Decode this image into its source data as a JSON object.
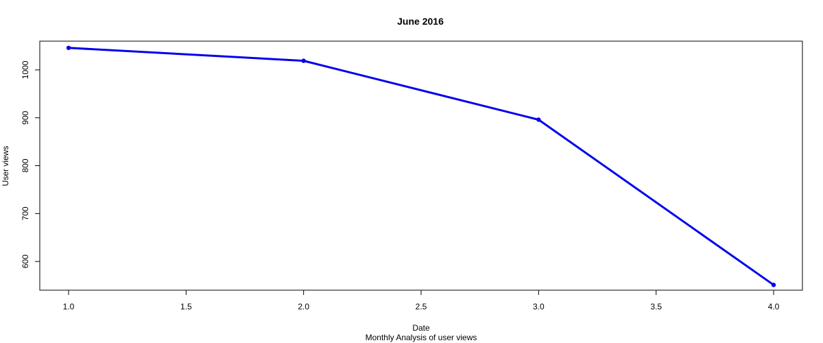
{
  "chart_data": {
    "type": "line",
    "title": "June 2016",
    "xlabel": "Date",
    "ylabel": "User views",
    "subtitle": "Monthly Analysis of user views",
    "xlim": [
      1.0,
      4.0
    ],
    "ylim": [
      540,
      1060
    ],
    "x_ticks": [
      1.0,
      1.5,
      2.0,
      2.5,
      3.0,
      3.5,
      4.0
    ],
    "x_tick_labels": [
      "1.0",
      "1.5",
      "2.0",
      "2.5",
      "3.0",
      "3.5",
      "4.0"
    ],
    "y_ticks": [
      600,
      700,
      800,
      900,
      1000
    ],
    "y_tick_labels": [
      "600",
      "700",
      "800",
      "900",
      "1000"
    ],
    "grid": false,
    "legend": "none",
    "series": [
      {
        "color": "#0000ee",
        "x": [
          1,
          2,
          3,
          4
        ],
        "y": [
          1046,
          1019,
          896,
          551
        ]
      }
    ]
  }
}
